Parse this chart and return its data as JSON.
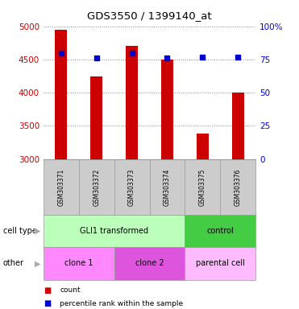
{
  "title": "GDS3550 / 1399140_at",
  "samples": [
    "GSM303371",
    "GSM303372",
    "GSM303373",
    "GSM303374",
    "GSM303375",
    "GSM303376"
  ],
  "counts": [
    4950,
    4250,
    4700,
    4500,
    3380,
    4000
  ],
  "percentile_ranks": [
    80,
    76,
    80,
    76,
    77,
    77
  ],
  "ylim_left": [
    3000,
    5000
  ],
  "ylim_right": [
    0,
    100
  ],
  "yticks_left": [
    3000,
    3500,
    4000,
    4500,
    5000
  ],
  "yticks_right": [
    0,
    25,
    50,
    75,
    100
  ],
  "bar_color": "#cc0000",
  "dot_color": "#0000cc",
  "bar_width": 0.35,
  "cell_type_spans": [
    [
      0,
      3,
      "GLI1 transformed",
      "#bbffbb"
    ],
    [
      4,
      5,
      "control",
      "#44cc44"
    ]
  ],
  "other_spans": [
    [
      0,
      1,
      "clone 1",
      "#ff88ff"
    ],
    [
      2,
      3,
      "clone 2",
      "#dd55dd"
    ],
    [
      4,
      5,
      "parental cell",
      "#ffbbff"
    ]
  ],
  "cell_type_row_label": "cell type",
  "other_row_label": "other",
  "legend_count_label": "count",
  "legend_pct_label": "percentile rank within the sample",
  "grid_color": "#888888",
  "bg_color": "#ffffff",
  "sample_bg": "#cccccc",
  "left_axis_color": "#cc0000",
  "right_axis_color": "#0000cc"
}
